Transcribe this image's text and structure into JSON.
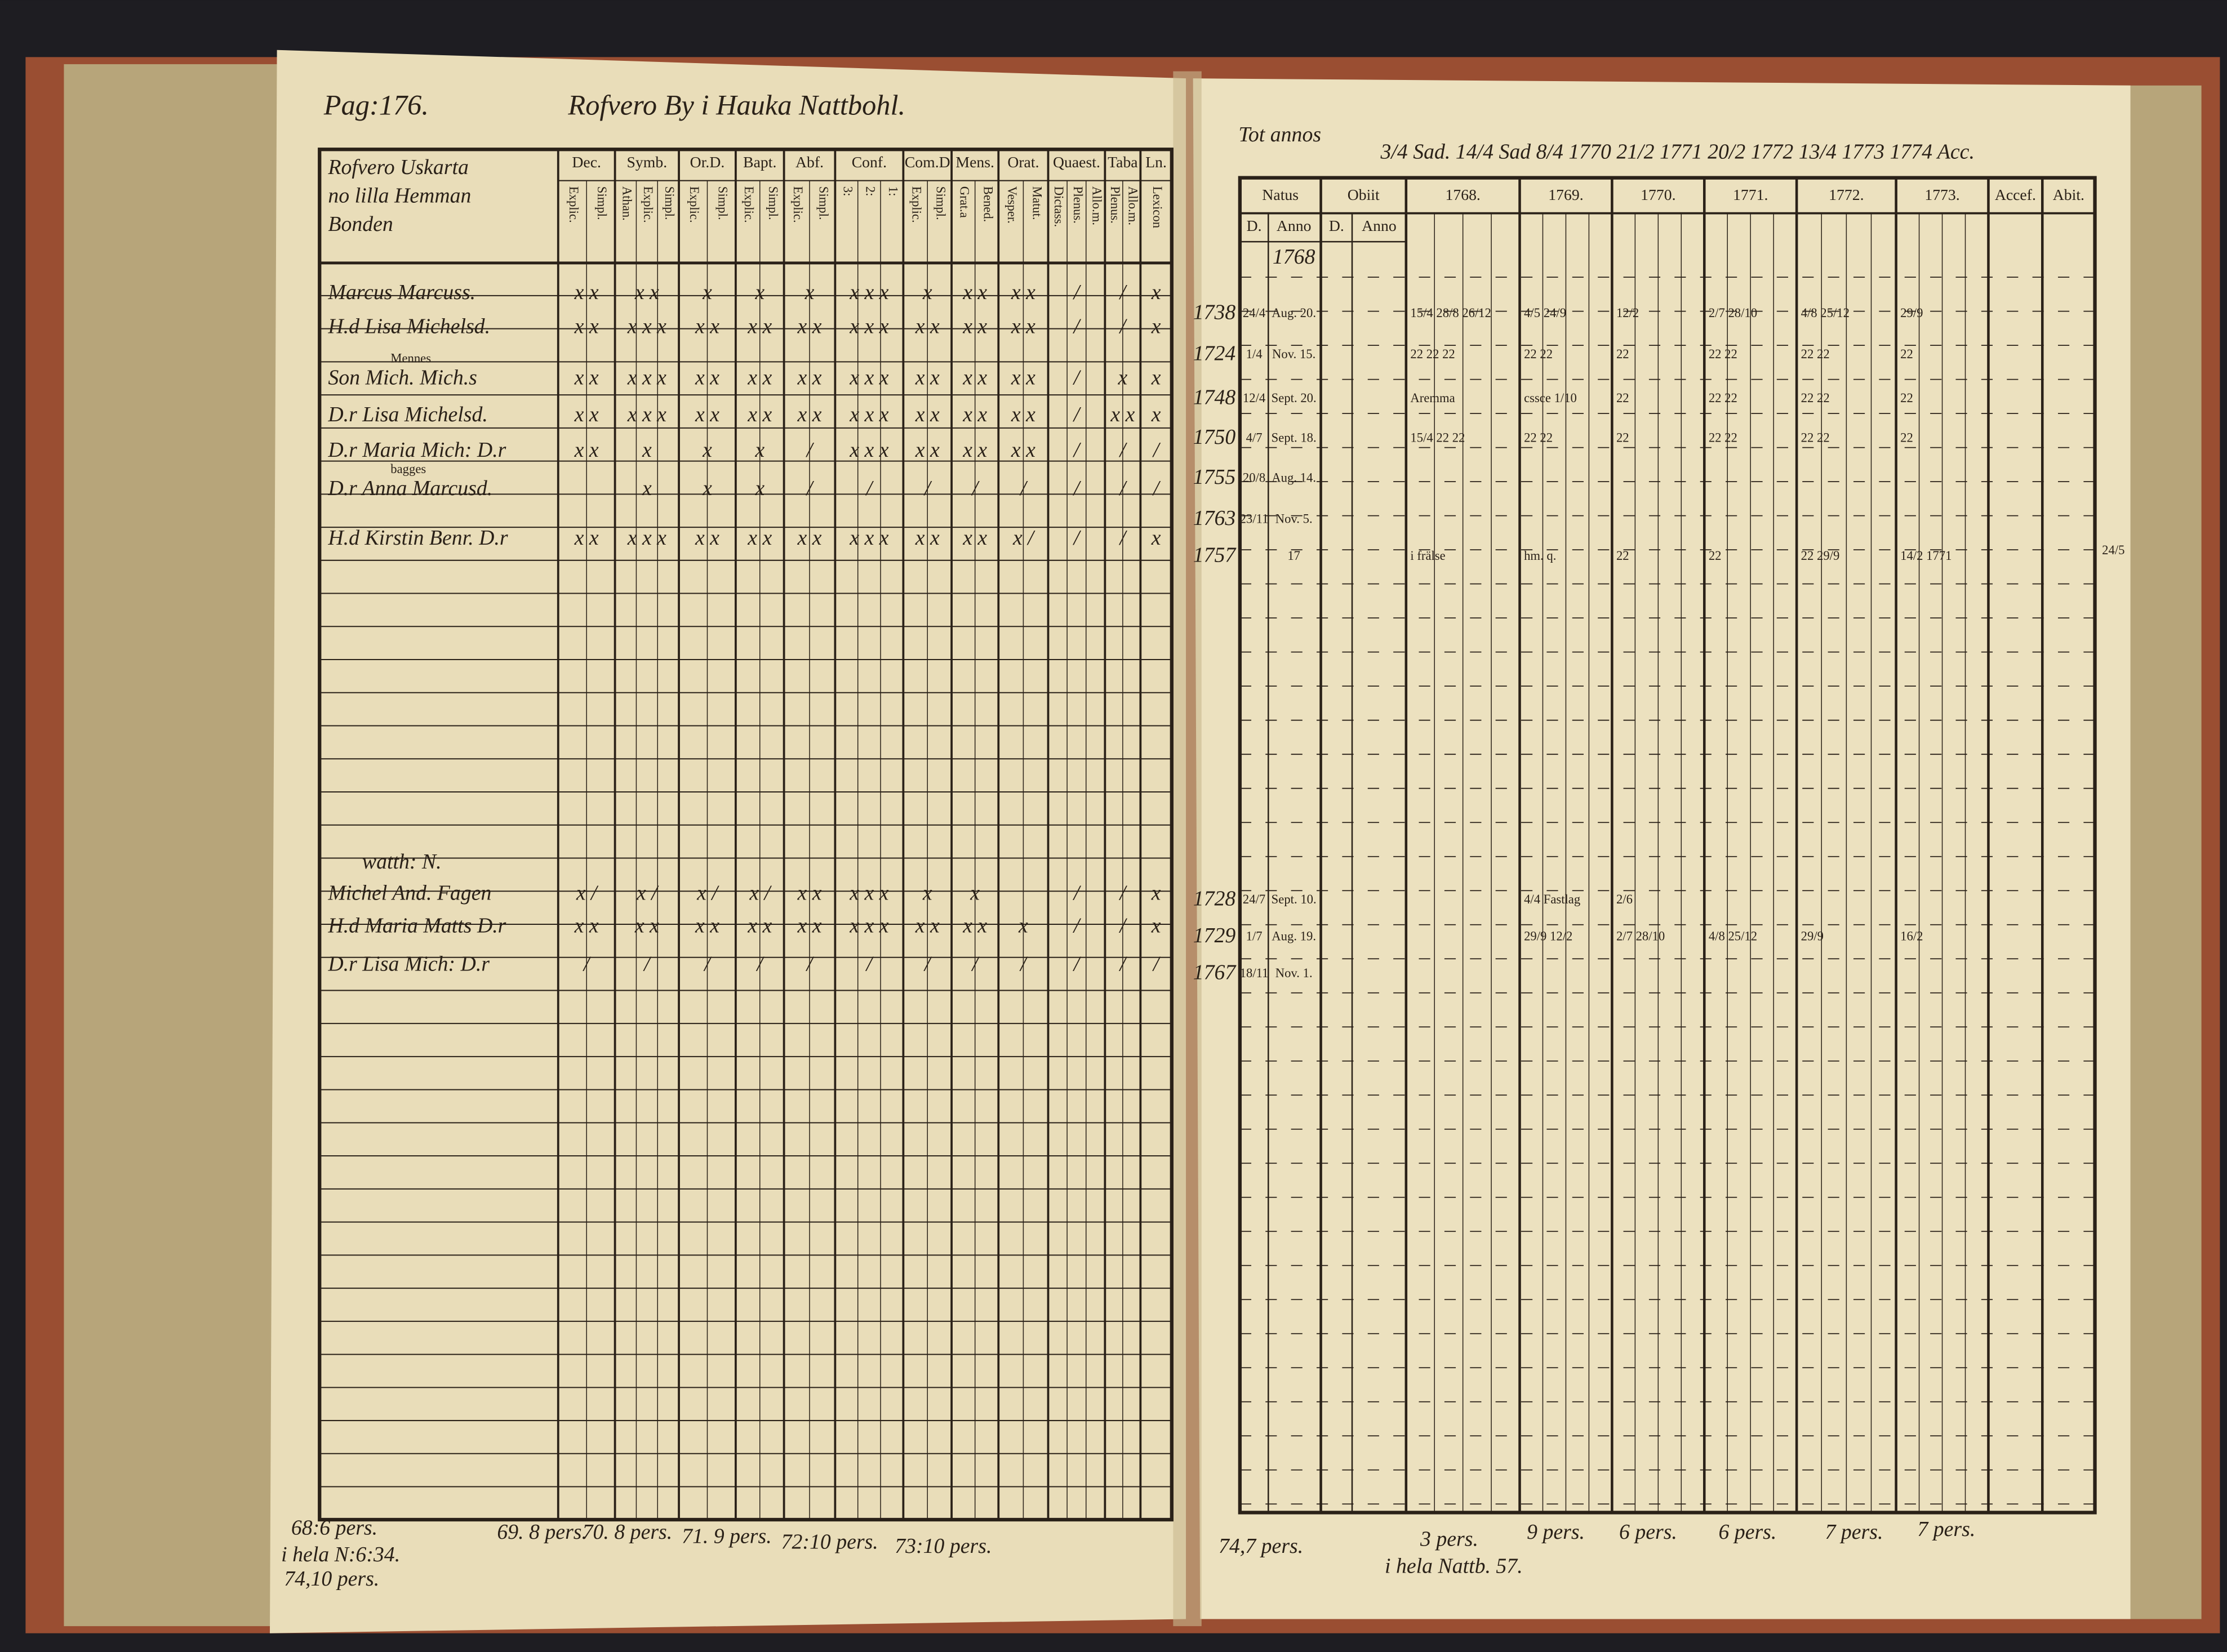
{
  "left": {
    "page_number": "Pag:176.",
    "title": "Rofvero By i Hauka Nattbohl.",
    "name_header": [
      "Rofvero Uskarta",
      "no lilla Hemman",
      "Bonden"
    ],
    "columns": [
      {
        "label": "Dec.",
        "subs": [
          "Explic.",
          "Simpl."
        ]
      },
      {
        "label": "Symb.",
        "subs": [
          "Athan.",
          "Explic.",
          "Simpl."
        ]
      },
      {
        "label": "Or.D.",
        "subs": [
          "Explic.",
          "Simpl."
        ]
      },
      {
        "label": "Bapt.",
        "subs": [
          "Explic.",
          "Simpl."
        ]
      },
      {
        "label": "Abf.",
        "subs": [
          "Explic.",
          "Simpl."
        ]
      },
      {
        "label": "Conf.",
        "subs": [
          "3:",
          "2:",
          "1:"
        ]
      },
      {
        "label": "Com.D",
        "subs": [
          "Explic.",
          "Simpl."
        ]
      },
      {
        "label": "Mens.",
        "subs": [
          "Grat.a",
          "Bened."
        ]
      },
      {
        "label": "Orat.",
        "subs": [
          "Vesper.",
          "Matut."
        ]
      },
      {
        "label": "Quaest.",
        "subs": [
          "Dictass.",
          "Plenus.",
          "Allo.m."
        ]
      },
      {
        "label": "Taba",
        "subs": [
          "Plenus.",
          "Allo.m."
        ]
      },
      {
        "label": "Ln.",
        "subs": [
          "Lexicon"
        ]
      }
    ],
    "rows": [
      {
        "name": "Marcus Marcuss.",
        "marks": [
          "x x",
          "x x",
          "x",
          "x",
          "x",
          "x x x",
          "x",
          "x x",
          "x x",
          "/",
          "/",
          "x"
        ]
      },
      {
        "name": "H.d Lisa Michelsd.",
        "marks": [
          "x x",
          "x x x",
          "x x",
          "x x",
          "x x",
          "x x x",
          "x x",
          "x x",
          "x x",
          "/",
          "/",
          "x"
        ]
      },
      {
        "name": "Son Mich. Mich.s",
        "note": "Mennes",
        "marks": [
          "x x",
          "x x x",
          "x x",
          "x x",
          "x x",
          "x x x",
          "x x",
          "x x",
          "x x",
          "/",
          "x",
          "x"
        ]
      },
      {
        "name": "D.r Lisa Michelsd.",
        "marks": [
          "x x",
          "x x x",
          "x x",
          "x x",
          "x x",
          "x x x",
          "x x",
          "x x",
          "x x",
          "/",
          "x x",
          "x"
        ]
      },
      {
        "name": "D.r Maria Mich: D.r",
        "marks": [
          "x x",
          "x",
          "x",
          "x",
          "/",
          "x x x",
          "x x",
          "x x",
          "x x",
          "/",
          "/",
          "/"
        ]
      },
      {
        "name": "D.r Anna Marcusd.",
        "note": "bagges",
        "marks": [
          "",
          "x",
          "x",
          "x",
          "/",
          "/",
          "/",
          "/",
          "/",
          "/",
          "/",
          "/"
        ]
      },
      {
        "name": "H.d Kirstin Benr. D.r",
        "marks": [
          "x x",
          "x x x",
          "x x",
          "x x",
          "x x",
          "x x x",
          "x x",
          "x x",
          "x /",
          "/",
          "/",
          "x"
        ]
      }
    ],
    "lower_note": "watth: N.",
    "lower_rows": [
      {
        "name": "Michel And. Fagen",
        "marks": [
          "x /",
          "x /",
          "x /",
          "x /",
          "x x",
          "x x x",
          "x",
          "x",
          "",
          "/",
          "/",
          "x"
        ]
      },
      {
        "name": "H.d Maria Matts D.r",
        "marks": [
          "x x",
          "x x",
          "x x",
          "x x",
          "x x",
          "x x x",
          "x x",
          "x x",
          "x",
          "/",
          "/",
          "x"
        ]
      },
      {
        "name": "D.r Lisa Mich: D.r",
        "marks": [
          "/",
          "/",
          "/",
          "/",
          "/",
          "/",
          "/",
          "/",
          "/",
          "/",
          "/",
          "/"
        ]
      }
    ],
    "footer": [
      "68:6 pers.",
      "69. 8 pers.",
      "70. 8 pers.",
      "71. 9 pers.",
      "72:10 pers.",
      "73:10 pers.",
      "i hela N:6:34.",
      "74,10 pers."
    ]
  },
  "right": {
    "top_label": "Tot annos",
    "top_line": "3/4  Sad. 14/4 Sad 8/4 1770 21/2 1771 20/2 1772 13/4 1773 1774 Acc.",
    "header": [
      "Natus",
      "Obiit",
      "1768.",
      "1769.",
      "1770.",
      "1771.",
      "1772.",
      "1773.",
      "Accef.",
      "Abit."
    ],
    "subheader": [
      "D.",
      "Anno",
      "D.",
      "Anno"
    ],
    "first_year": "1768",
    "rows": [
      {
        "born": "1738",
        "d": "24/4",
        "anno": "Aug. 20.",
        "years": [
          "15/4 28/8 26/12",
          "4/5 24/9",
          "12/2",
          "2/7 28/10",
          "4/8 25/12",
          "29/9"
        ]
      },
      {
        "born": "1724",
        "d": "1/4",
        "anno": "Nov. 15.",
        "years": [
          "22 22 22",
          "22 22",
          "22",
          "22 22",
          "22 22",
          "22"
        ]
      },
      {
        "born": "1748",
        "d": "12/4",
        "anno": "Sept. 20.",
        "years": [
          "Aremma",
          "cssce 1/10",
          "22",
          "22 22",
          "22 22",
          "22"
        ]
      },
      {
        "born": "1750",
        "d": "4/7",
        "anno": "Sept. 18.",
        "years": [
          "15/4 22 22",
          "22 22",
          "22",
          "22 22",
          "22 22",
          "22"
        ]
      },
      {
        "born": "1755",
        "d": "20/8",
        "anno": "Aug. 14.",
        "years": [
          "",
          "",
          "",
          "",
          "",
          ""
        ]
      },
      {
        "born": "1763",
        "d": "23/11",
        "anno": "Nov. 5.",
        "years": [
          "",
          "",
          "",
          "",
          "",
          ""
        ]
      },
      {
        "born": "1757",
        "d": "",
        "anno": "17",
        "years": [
          "i frälse",
          "hm. q.",
          "22",
          "22",
          "22 29/9",
          "14/2 1771"
        ]
      }
    ],
    "side_note": "24/5",
    "lower_rows": [
      {
        "born": "1728",
        "d": "24/7",
        "anno": "Sept. 10.",
        "years": [
          "",
          "4/4 Fastlag",
          "2/6",
          "",
          "",
          ""
        ]
      },
      {
        "born": "1729",
        "d": "1/7",
        "anno": "Aug. 19.",
        "years": [
          "",
          "29/9 12/2",
          "2/7 28/10",
          "4/8 25/12",
          "29/9",
          "16/2"
        ]
      },
      {
        "born": "1767",
        "d": "18/11",
        "anno": "Nov. 1.",
        "years": [
          "",
          "",
          "",
          "",
          "",
          ""
        ]
      }
    ],
    "footer": [
      "74,7 pers.",
      "3 pers.",
      "9 pers.",
      "6 pers.",
      "6 pers.",
      "7 pers.",
      "7 pers.",
      "i hela Nattb. 57."
    ]
  }
}
